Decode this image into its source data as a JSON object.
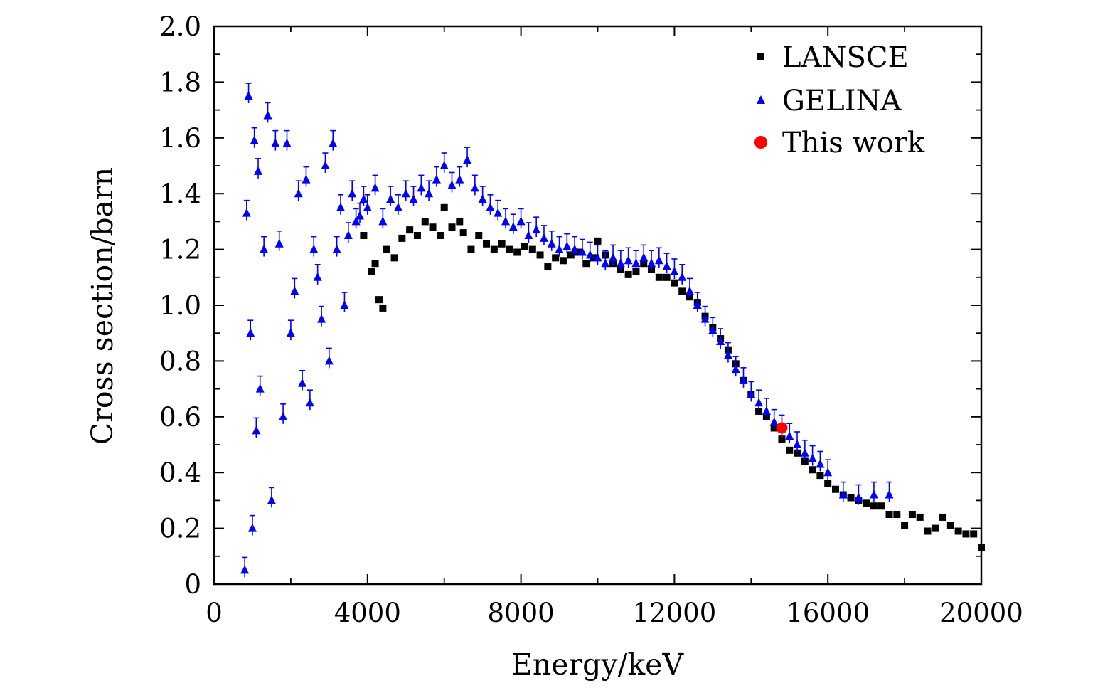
{
  "chart_data": {
    "type": "scatter",
    "title": "",
    "xlabel": "Energy/keV",
    "ylabel": "Cross section/barn",
    "xlim": [
      0,
      20000
    ],
    "ylim": [
      0,
      2.0
    ],
    "x_ticks": [
      0,
      4000,
      8000,
      12000,
      16000,
      20000
    ],
    "x_tick_labels": [
      "0",
      "4000",
      "8000",
      "12000",
      "16000",
      "20000"
    ],
    "y_ticks": [
      0,
      0.2,
      0.4,
      0.6,
      0.8,
      1.0,
      1.2,
      1.4,
      1.6,
      1.8,
      2.0
    ],
    "y_tick_labels": [
      "0",
      "0.2",
      "0.4",
      "0.6",
      "0.8",
      "1.0",
      "1.2",
      "1.4",
      "1.6",
      "1.8",
      "2.0"
    ],
    "grid": false,
    "legend_position": "top-right",
    "series": [
      {
        "name": "LANSCE",
        "marker": "square",
        "color": "#000000",
        "x": [
          3900,
          4100,
          4200,
          4300,
          4400,
          4500,
          4700,
          4900,
          5100,
          5300,
          5500,
          5700,
          5900,
          6000,
          6200,
          6400,
          6500,
          6700,
          6900,
          7100,
          7300,
          7500,
          7700,
          7900,
          8100,
          8300,
          8500,
          8700,
          8900,
          9100,
          9300,
          9500,
          9700,
          9900,
          10000,
          10200,
          10400,
          10600,
          10800,
          11000,
          11200,
          11400,
          11600,
          11800,
          12000,
          12200,
          12400,
          12600,
          12800,
          13000,
          13200,
          13400,
          13600,
          13800,
          14000,
          14200,
          14400,
          14600,
          14800,
          15000,
          15200,
          15400,
          15600,
          15800,
          16000,
          16200,
          16400,
          16600,
          16800,
          17000,
          17200,
          17400,
          17600,
          17800,
          18000,
          18200,
          18400,
          18600,
          18800,
          19000,
          19200,
          19400,
          19600,
          19800,
          20000
        ],
        "y": [
          1.25,
          1.12,
          1.15,
          1.02,
          0.99,
          1.2,
          1.17,
          1.24,
          1.27,
          1.25,
          1.3,
          1.28,
          1.25,
          1.35,
          1.28,
          1.3,
          1.26,
          1.2,
          1.25,
          1.22,
          1.2,
          1.22,
          1.2,
          1.19,
          1.21,
          1.2,
          1.18,
          1.14,
          1.17,
          1.16,
          1.18,
          1.19,
          1.15,
          1.17,
          1.23,
          1.18,
          1.15,
          1.13,
          1.11,
          1.12,
          1.15,
          1.13,
          1.1,
          1.1,
          1.08,
          1.05,
          1.03,
          1.01,
          0.96,
          0.92,
          0.88,
          0.84,
          0.79,
          0.73,
          0.68,
          0.62,
          0.6,
          0.56,
          0.52,
          0.48,
          0.47,
          0.44,
          0.41,
          0.39,
          0.36,
          0.34,
          0.32,
          0.31,
          0.3,
          0.29,
          0.28,
          0.28,
          0.25,
          0.25,
          0.21,
          0.25,
          0.24,
          0.19,
          0.2,
          0.24,
          0.21,
          0.19,
          0.18,
          0.18,
          0.13
        ]
      },
      {
        "name": "GELINA",
        "marker": "triangle",
        "color": "#0000ff",
        "x": [
          800,
          850,
          900,
          950,
          1000,
          1050,
          1100,
          1150,
          1200,
          1300,
          1400,
          1500,
          1600,
          1700,
          1800,
          1900,
          2000,
          2100,
          2200,
          2300,
          2400,
          2500,
          2600,
          2700,
          2800,
          2900,
          3000,
          3100,
          3200,
          3300,
          3400,
          3500,
          3600,
          3700,
          3800,
          3900,
          4000,
          4200,
          4400,
          4600,
          4800,
          5000,
          5200,
          5400,
          5600,
          5800,
          6000,
          6200,
          6400,
          6600,
          6800,
          7000,
          7200,
          7400,
          7600,
          7800,
          8000,
          8200,
          8400,
          8600,
          8800,
          9000,
          9200,
          9400,
          9600,
          9800,
          10000,
          10200,
          10400,
          10600,
          10800,
          11000,
          11200,
          11400,
          11600,
          11800,
          12000,
          12200,
          12400,
          12600,
          12800,
          13000,
          13200,
          13400,
          13600,
          13800,
          14000,
          14200,
          14400,
          14600,
          14800,
          15000,
          15200,
          15400,
          15600,
          15800,
          16000,
          16400,
          16800,
          17200,
          17600
        ],
        "y": [
          0.05,
          1.33,
          1.75,
          0.9,
          0.2,
          1.59,
          0.55,
          1.48,
          0.7,
          1.2,
          1.68,
          0.3,
          1.58,
          1.22,
          0.6,
          1.58,
          0.9,
          1.05,
          1.4,
          0.72,
          1.45,
          0.65,
          1.2,
          1.1,
          0.95,
          1.5,
          0.8,
          1.58,
          1.2,
          1.35,
          1.0,
          1.25,
          1.4,
          1.3,
          1.32,
          1.38,
          1.35,
          1.42,
          1.3,
          1.38,
          1.35,
          1.4,
          1.38,
          1.42,
          1.4,
          1.45,
          1.5,
          1.43,
          1.45,
          1.52,
          1.42,
          1.38,
          1.35,
          1.33,
          1.3,
          1.28,
          1.3,
          1.25,
          1.27,
          1.24,
          1.22,
          1.2,
          1.21,
          1.2,
          1.19,
          1.18,
          1.17,
          1.15,
          1.17,
          1.15,
          1.16,
          1.15,
          1.17,
          1.15,
          1.16,
          1.14,
          1.12,
          1.1,
          1.05,
          1.0,
          0.95,
          0.91,
          0.87,
          0.82,
          0.77,
          0.73,
          0.68,
          0.65,
          0.62,
          0.58,
          0.56,
          0.53,
          0.5,
          0.47,
          0.45,
          0.43,
          0.4,
          0.32,
          0.31,
          0.32,
          0.32
        ]
      },
      {
        "name": "This work",
        "marker": "circle",
        "color": "#ff0000",
        "x": [
          14800
        ],
        "y": [
          0.56
        ]
      }
    ]
  }
}
